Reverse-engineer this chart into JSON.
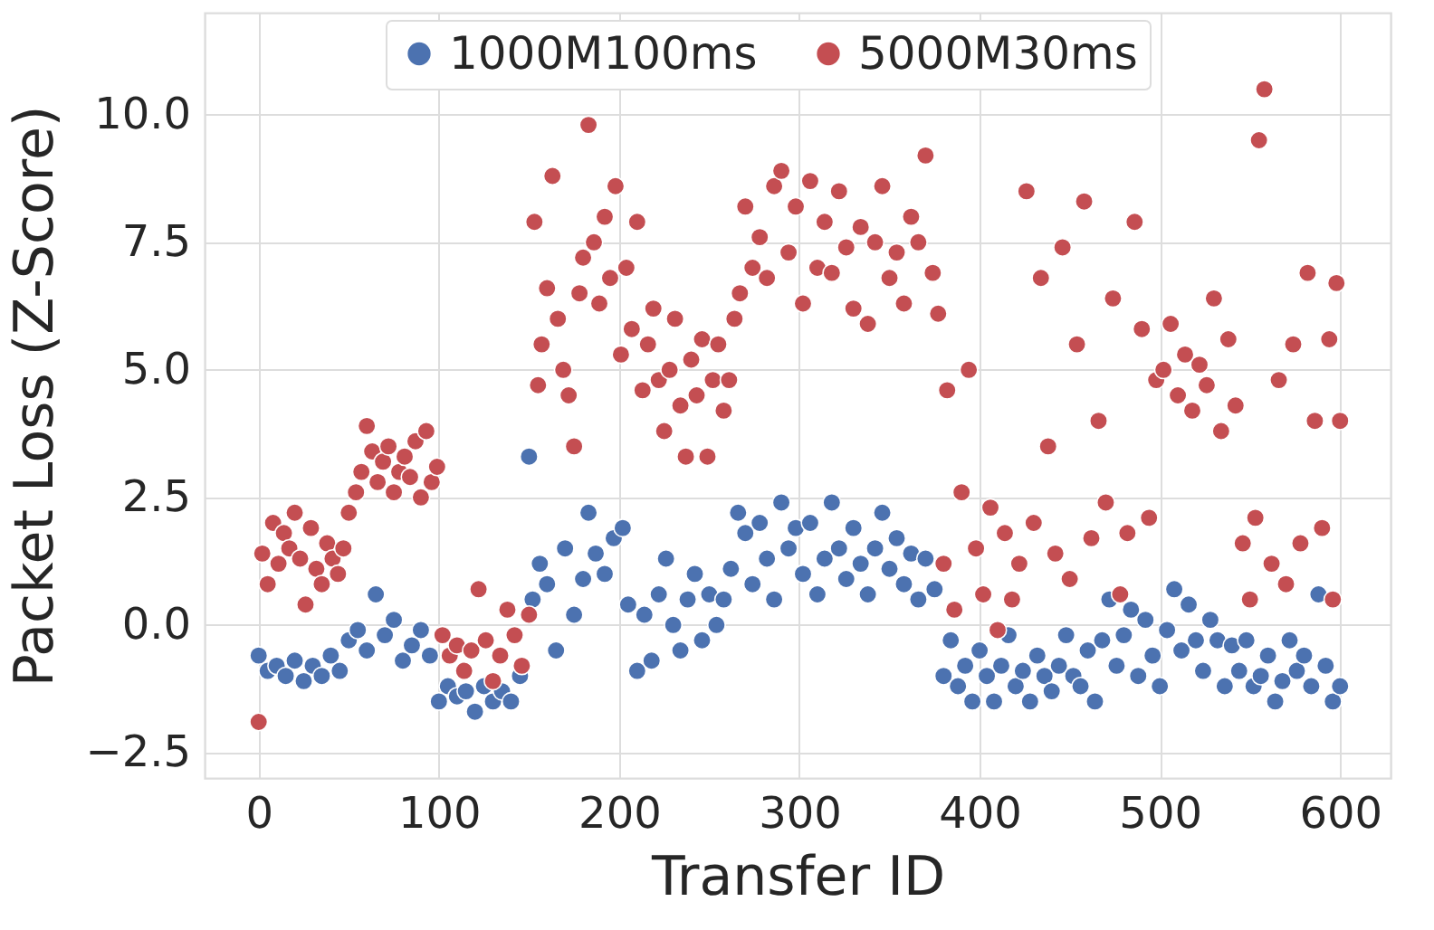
{
  "chart_data": {
    "type": "scatter",
    "xlabel": "Transfer ID",
    "ylabel": "Packet Loss (Z-Score)",
    "xlim": [
      -30,
      628
    ],
    "ylim": [
      -3,
      12
    ],
    "xticks": [
      0,
      100,
      200,
      300,
      400,
      500,
      600
    ],
    "yticks": [
      {
        "value": -2.5,
        "label": "−2.5"
      },
      {
        "value": 0,
        "label": "0.0"
      },
      {
        "value": 2.5,
        "label": "2.5"
      },
      {
        "value": 5,
        "label": "5.0"
      },
      {
        "value": 7.5,
        "label": "7.5"
      },
      {
        "value": 10,
        "label": "10.0"
      }
    ],
    "grid": true,
    "legend": "top",
    "marker": "circle",
    "series": [
      {
        "name": "1000M100ms",
        "color": "#4c72b0",
        "x": [
          0,
          5,
          10,
          15,
          20,
          25,
          30,
          35,
          40,
          45,
          50,
          55,
          60,
          65,
          70,
          75,
          80,
          85,
          90,
          95,
          100,
          105,
          110,
          115,
          120,
          125,
          130,
          135,
          140,
          145,
          150,
          152,
          156,
          160,
          165,
          170,
          175,
          180,
          183,
          187,
          192,
          197,
          202,
          205,
          210,
          214,
          218,
          222,
          226,
          230,
          234,
          238,
          242,
          246,
          250,
          254,
          258,
          262,
          266,
          270,
          274,
          278,
          282,
          286,
          290,
          294,
          298,
          302,
          306,
          310,
          314,
          318,
          322,
          326,
          330,
          334,
          338,
          342,
          346,
          350,
          354,
          358,
          362,
          366,
          370,
          375,
          380,
          384,
          388,
          392,
          396,
          400,
          404,
          408,
          412,
          416,
          420,
          424,
          428,
          432,
          436,
          440,
          444,
          448,
          452,
          456,
          460,
          464,
          468,
          472,
          476,
          480,
          484,
          488,
          492,
          496,
          500,
          504,
          508,
          512,
          516,
          520,
          524,
          528,
          532,
          536,
          540,
          544,
          548,
          552,
          556,
          560,
          564,
          568,
          572,
          576,
          580,
          584,
          588,
          592,
          596,
          600
        ],
        "values": [
          -0.6,
          -0.9,
          -0.8,
          -1.0,
          -0.7,
          -1.1,
          -0.8,
          -1.0,
          -0.6,
          -0.9,
          -0.3,
          -0.1,
          -0.5,
          0.6,
          -0.2,
          0.1,
          -0.7,
          -0.4,
          -0.1,
          -0.6,
          -1.5,
          -1.2,
          -1.4,
          -1.3,
          -1.7,
          -1.2,
          -1.5,
          -1.3,
          -1.5,
          -1.0,
          3.3,
          0.5,
          1.2,
          0.8,
          -0.5,
          1.5,
          0.2,
          0.9,
          2.2,
          1.4,
          1.0,
          1.7,
          1.9,
          0.4,
          -0.9,
          0.2,
          -0.7,
          0.6,
          1.3,
          0.0,
          -0.5,
          0.5,
          1.0,
          -0.3,
          0.6,
          0.0,
          0.5,
          1.1,
          2.2,
          1.8,
          0.8,
          2.0,
          1.3,
          0.5,
          2.4,
          1.5,
          1.9,
          1.0,
          2.0,
          0.6,
          1.3,
          2.4,
          1.5,
          0.9,
          1.9,
          1.2,
          0.6,
          1.5,
          2.2,
          1.1,
          1.7,
          0.8,
          1.4,
          0.5,
          1.3,
          0.7,
          -1.0,
          -0.3,
          -1.2,
          -0.8,
          -1.5,
          -0.5,
          -1.0,
          -1.5,
          -0.8,
          -0.2,
          -1.2,
          -0.9,
          -1.5,
          -0.6,
          -1.0,
          -1.3,
          -0.8,
          -0.2,
          -1.0,
          -1.2,
          -0.5,
          -1.5,
          -0.3,
          0.5,
          -0.8,
          -0.2,
          0.3,
          -1.0,
          0.1,
          -0.6,
          -1.2,
          -0.1,
          0.7,
          -0.5,
          0.4,
          -0.3,
          -0.9,
          0.1,
          -0.3,
          -1.2,
          -0.4,
          -0.9,
          -0.3,
          -1.2,
          -1.0,
          -0.6,
          -1.5,
          -1.1,
          -0.3,
          -0.9,
          -0.6,
          -1.2,
          0.6,
          -0.8,
          -1.5,
          -1.2
        ]
      },
      {
        "name": "5000M30ms",
        "color": "#c44e52",
        "x": [
          0,
          2,
          5,
          8,
          11,
          14,
          17,
          20,
          23,
          26,
          29,
          32,
          35,
          38,
          41,
          44,
          47,
          50,
          54,
          57,
          60,
          63,
          66,
          69,
          72,
          75,
          78,
          81,
          84,
          87,
          90,
          93,
          96,
          99,
          102,
          106,
          110,
          114,
          118,
          122,
          126,
          130,
          134,
          138,
          142,
          146,
          150,
          153,
          155,
          157,
          160,
          163,
          166,
          169,
          172,
          175,
          178,
          180,
          183,
          186,
          189,
          192,
          195,
          198,
          201,
          204,
          207,
          210,
          213,
          216,
          219,
          222,
          225,
          228,
          231,
          234,
          237,
          240,
          243,
          246,
          249,
          252,
          255,
          258,
          261,
          264,
          267,
          270,
          274,
          278,
          282,
          286,
          290,
          294,
          298,
          302,
          306,
          310,
          314,
          318,
          322,
          326,
          330,
          334,
          338,
          342,
          346,
          350,
          354,
          358,
          362,
          366,
          370,
          374,
          377,
          380,
          382,
          386,
          390,
          394,
          398,
          402,
          406,
          410,
          414,
          418,
          422,
          426,
          430,
          434,
          438,
          442,
          446,
          450,
          454,
          458,
          462,
          466,
          470,
          474,
          478,
          482,
          486,
          490,
          494,
          498,
          502,
          506,
          510,
          514,
          518,
          522,
          526,
          530,
          534,
          538,
          542,
          546,
          550,
          553,
          555,
          558,
          562,
          566,
          570,
          574,
          578,
          582,
          586,
          590,
          594,
          596,
          598,
          600
        ],
        "values": [
          -1.9,
          1.4,
          0.8,
          2.0,
          1.2,
          1.8,
          1.5,
          2.2,
          1.3,
          0.4,
          1.9,
          1.1,
          0.8,
          1.6,
          1.3,
          1.0,
          1.5,
          2.2,
          2.6,
          3.0,
          3.9,
          3.4,
          2.8,
          3.2,
          3.5,
          2.6,
          3.0,
          3.3,
          2.9,
          3.6,
          2.5,
          3.8,
          2.8,
          3.1,
          -0.2,
          -0.6,
          -0.4,
          -0.9,
          -0.5,
          0.7,
          -0.3,
          -1.1,
          -0.6,
          0.3,
          -0.2,
          -0.8,
          0.2,
          7.9,
          4.7,
          5.5,
          6.6,
          8.8,
          6.0,
          5.0,
          4.5,
          3.5,
          6.5,
          7.2,
          9.8,
          7.5,
          6.3,
          8.0,
          6.8,
          8.6,
          5.3,
          7.0,
          5.8,
          7.9,
          4.6,
          5.5,
          6.2,
          4.8,
          3.8,
          5.0,
          6.0,
          4.3,
          3.3,
          5.2,
          4.5,
          5.6,
          3.3,
          4.8,
          5.5,
          4.2,
          4.8,
          6.0,
          6.5,
          8.2,
          7.0,
          7.6,
          6.8,
          8.6,
          8.9,
          7.3,
          8.2,
          6.3,
          8.7,
          7.0,
          7.9,
          6.9,
          8.5,
          7.4,
          6.2,
          7.8,
          5.9,
          7.5,
          8.6,
          6.8,
          7.3,
          6.3,
          8.0,
          7.5,
          9.2,
          6.9,
          6.1,
          1.2,
          4.6,
          0.3,
          2.6,
          5.0,
          1.5,
          0.6,
          2.3,
          -0.1,
          1.8,
          0.5,
          1.2,
          8.5,
          2.0,
          6.8,
          3.5,
          1.4,
          7.4,
          0.9,
          5.5,
          8.3,
          1.7,
          4.0,
          2.4,
          6.4,
          0.6,
          1.8,
          7.9,
          5.8,
          2.1,
          4.8,
          5.0,
          5.9,
          4.5,
          5.3,
          4.2,
          5.1,
          4.7,
          6.4,
          3.8,
          5.6,
          4.3,
          1.6,
          0.5,
          2.1,
          9.5,
          10.5,
          1.2,
          4.8,
          0.8,
          5.5,
          1.6,
          6.9,
          4.0,
          1.9,
          5.6,
          0.5,
          6.7,
          4.0
        ]
      }
    ]
  }
}
